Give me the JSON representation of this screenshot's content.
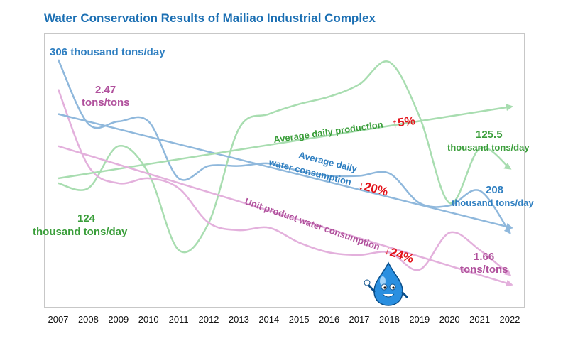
{
  "title": "Water Conservation Results of Mailiao Industrial Complex",
  "colors": {
    "water": "#2f7fc1",
    "production": "#3a9e3a",
    "unit": "#b0509c",
    "reduction": "#e3141c",
    "water_curve": "#8fb8dc",
    "production_curve": "#a8ddb0",
    "unit_curve": "#e3b0dc"
  },
  "chart_data": {
    "type": "line",
    "x": [
      "2007",
      "2008",
      "2009",
      "2010",
      "2011",
      "2012",
      "2013",
      "2014",
      "2015",
      "2016",
      "2017",
      "2018",
      "2019",
      "2020",
      "2021",
      "2022"
    ],
    "series": [
      {
        "name": "Average daily water consumption",
        "color": "#8fb8dc",
        "values": [
          0.96,
          0.7,
          0.71,
          0.71,
          0.48,
          0.53,
          0.53,
          0.54,
          0.51,
          0.49,
          0.49,
          0.5,
          0.38,
          0.37,
          0.43,
          0.26
        ]
      },
      {
        "name": "Average daily production",
        "color": "#a8ddb0",
        "values": [
          0.46,
          0.44,
          0.61,
          0.5,
          0.19,
          0.3,
          0.68,
          0.74,
          0.78,
          0.81,
          0.86,
          0.95,
          0.73,
          0.38,
          0.6,
          0.52
        ]
      },
      {
        "name": "Unit product water consumption",
        "color": "#e3b0dc",
        "values": [
          0.84,
          0.53,
          0.46,
          0.48,
          0.44,
          0.3,
          0.27,
          0.28,
          0.22,
          0.18,
          0.17,
          0.18,
          0.11,
          0.26,
          0.19,
          0.09
        ]
      }
    ],
    "trends": [
      {
        "name": "water",
        "from": 0.74,
        "to": 0.28
      },
      {
        "name": "production",
        "from": 0.48,
        "to": 0.77
      },
      {
        "name": "unit",
        "from": 0.61,
        "to": 0.05
      }
    ],
    "ylim": [
      0,
      1
    ],
    "grid": false,
    "annotations": {
      "water_start": "306 thousand tons/day",
      "water_end_1": "208",
      "water_end_2": "thousand tons/day",
      "unit_start_1": "2.47",
      "unit_start_2": "tons/tons",
      "unit_end_1": "1.66",
      "unit_end_2": "tons/tons",
      "prod_start_1": "124",
      "prod_start_2": "thousand tons/day",
      "prod_end_1": "125.5",
      "prod_end_2": "thousand tons/day",
      "prod_trend_text": "Average daily production",
      "prod_trend_pct": "↑5%",
      "water_trend_1": "Average daily",
      "water_trend_2": "water consumption",
      "water_trend_pct": "↓20%",
      "unit_trend_text": "Unit product water consumption",
      "unit_trend_pct": "↓24%"
    }
  }
}
